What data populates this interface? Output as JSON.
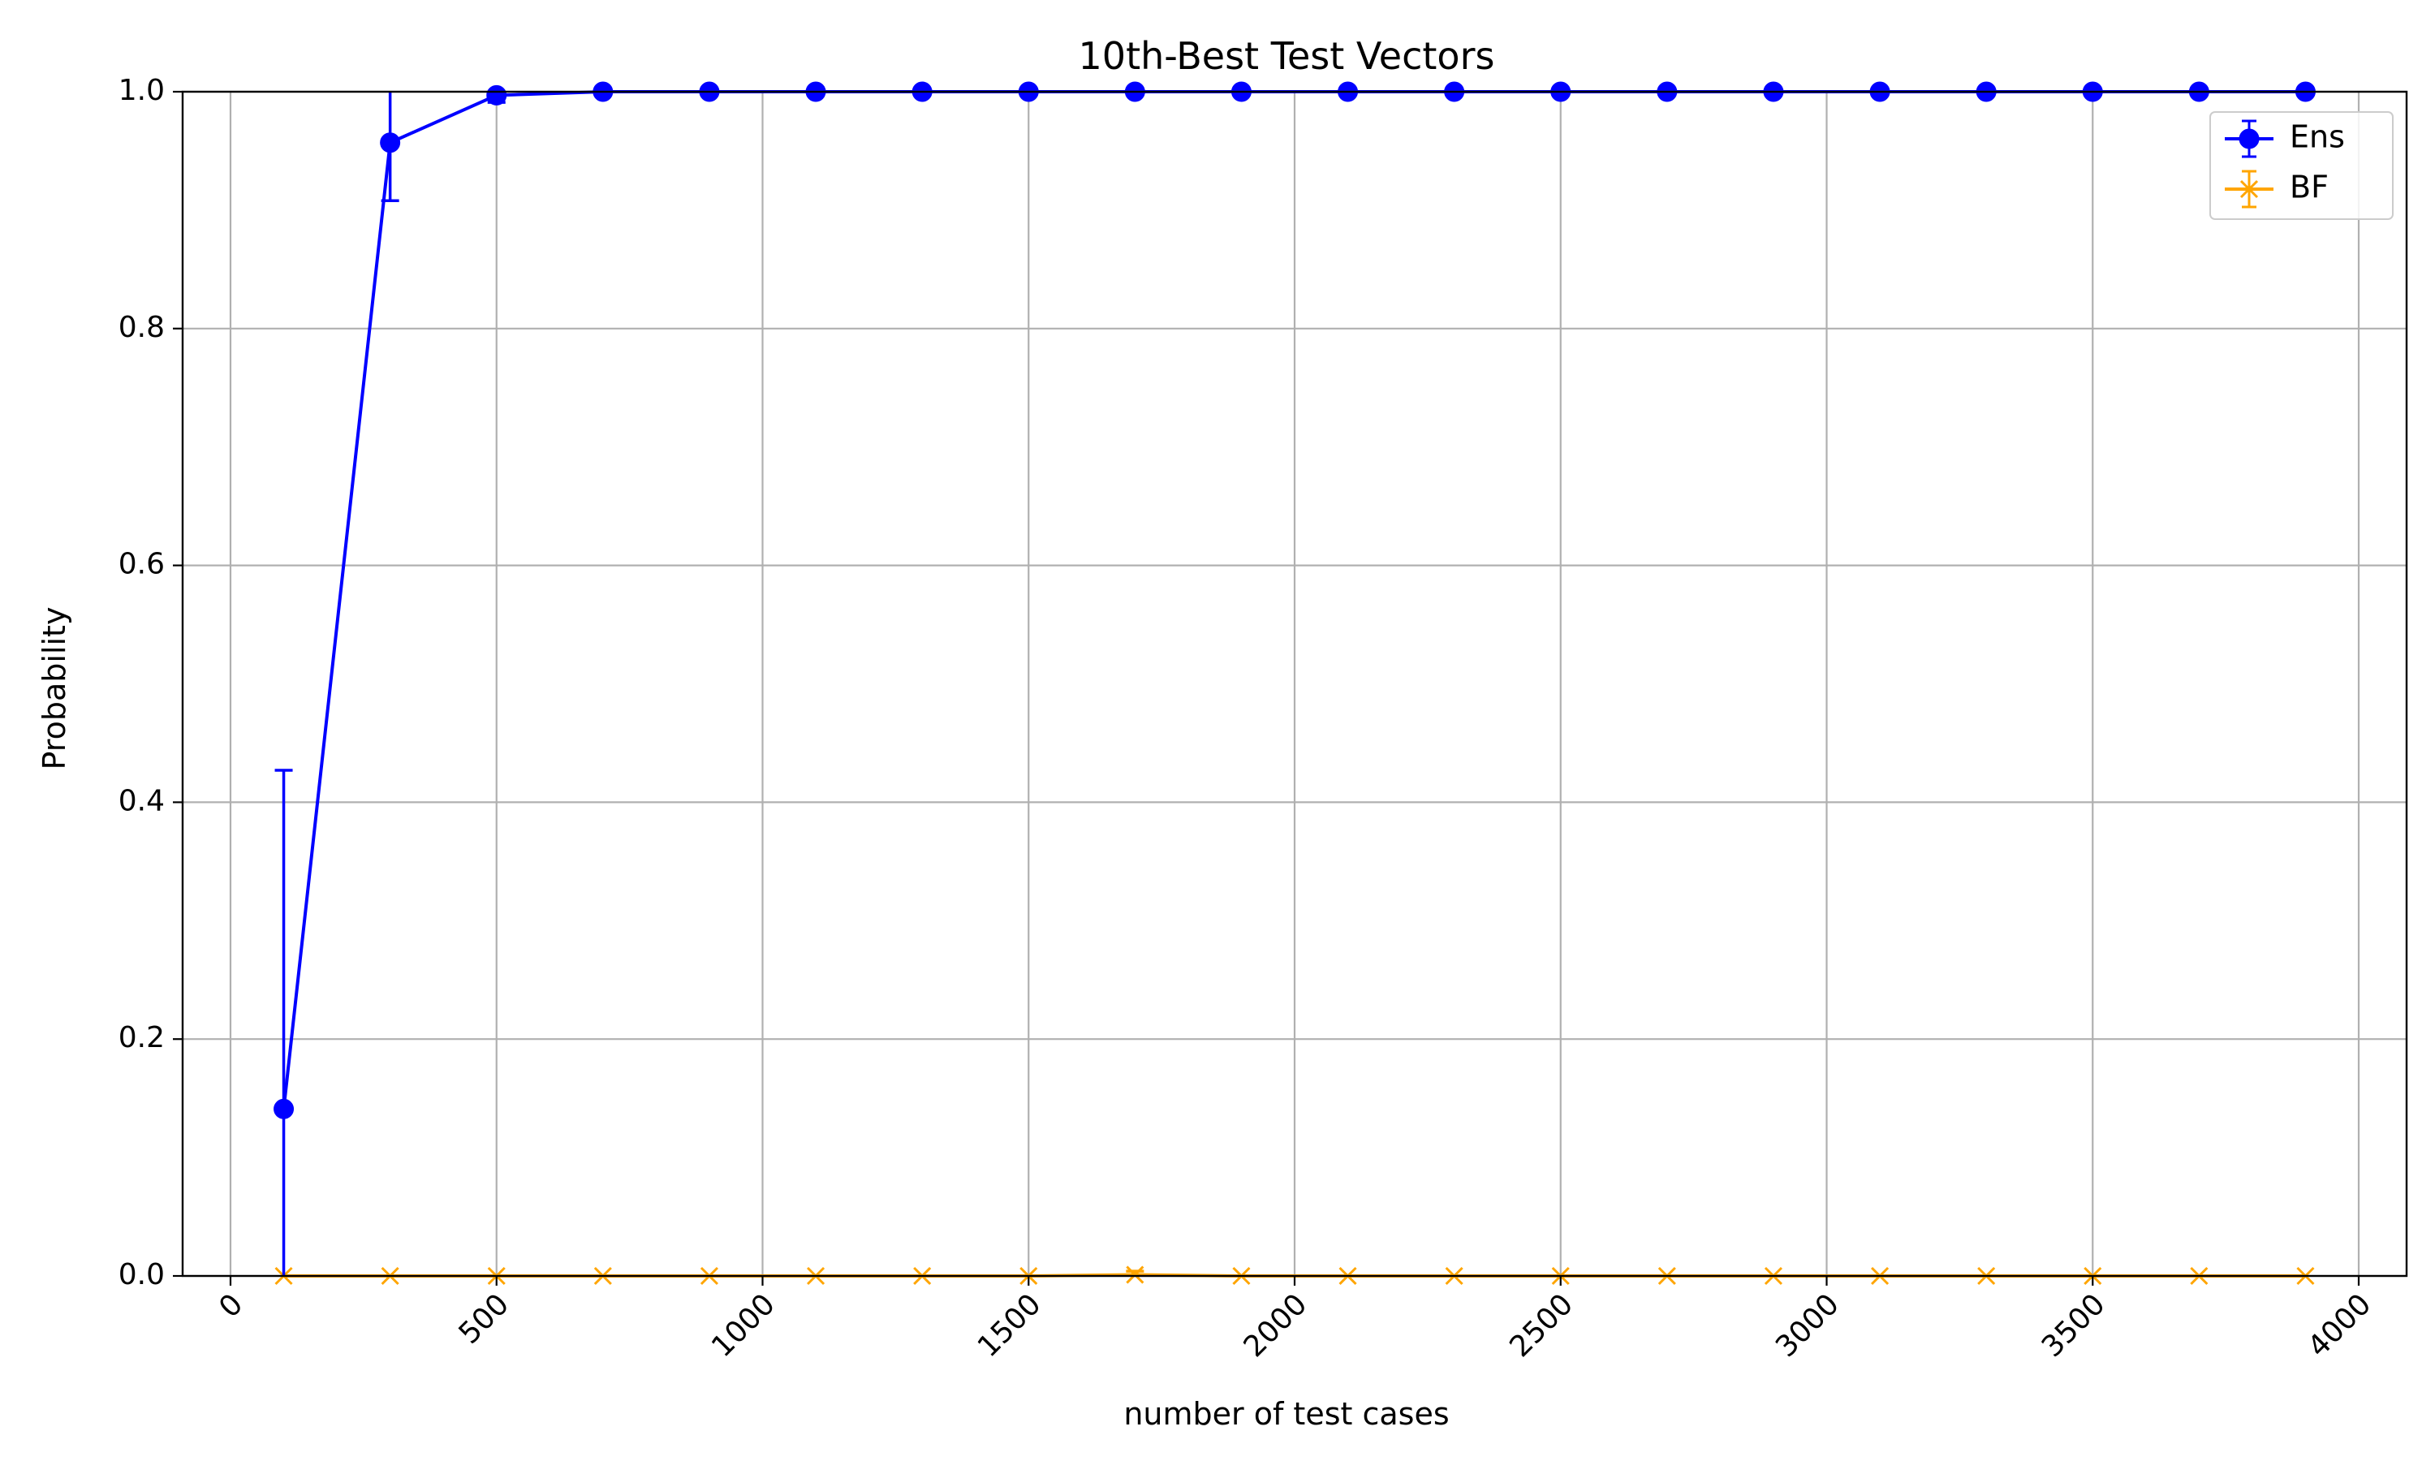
{
  "chart_data": {
    "type": "line",
    "title": "10th-Best Test Vectors",
    "xlabel": "number of test cases",
    "ylabel": "Probability",
    "xlim": [
      -90,
      4090
    ],
    "ylim": [
      0,
      1
    ],
    "xticks": [
      0,
      500,
      1000,
      1500,
      2000,
      2500,
      3000,
      3500,
      4000
    ],
    "yticks": [
      0.0,
      0.2,
      0.4,
      0.6,
      0.8,
      1.0
    ],
    "xtick_labels": [
      "0",
      "500",
      "1000",
      "1500",
      "2000",
      "2500",
      "3000",
      "3500",
      "4000"
    ],
    "ytick_labels": [
      "0.0",
      "0.2",
      "0.4",
      "0.6",
      "0.8",
      "1.0"
    ],
    "xtick_rotation_deg": 45,
    "grid": true,
    "legend_position": "top-right",
    "x": [
      100,
      300,
      500,
      700,
      900,
      1100,
      1300,
      1500,
      1700,
      1900,
      2100,
      2300,
      2500,
      2700,
      2900,
      3100,
      3300,
      3500,
      3700,
      3900
    ],
    "series": [
      {
        "name": "Ens",
        "color": "#0000ff",
        "marker": "circle",
        "values": [
          0.141,
          0.957,
          0.997,
          1.0,
          1.0,
          1.0,
          1.0,
          1.0,
          1.0,
          1.0,
          1.0,
          1.0,
          1.0,
          1.0,
          1.0,
          1.0,
          1.0,
          1.0,
          1.0,
          1.0
        ],
        "error": [
          0.286,
          0.049,
          0.006,
          0,
          0,
          0,
          0,
          0,
          0,
          0,
          0,
          0,
          0,
          0,
          0,
          0,
          0,
          0,
          0,
          0
        ]
      },
      {
        "name": "BF",
        "color": "#ffa500",
        "marker": "x",
        "values": [
          0,
          0,
          0,
          0,
          0,
          0,
          0,
          0,
          0.001,
          0,
          0,
          0,
          0,
          0,
          0,
          0,
          0,
          0,
          0,
          0
        ],
        "error": [
          0,
          0,
          0,
          0,
          0,
          0,
          0,
          0,
          0.003,
          0,
          0,
          0,
          0,
          0,
          0,
          0,
          0,
          0,
          0,
          0
        ]
      }
    ]
  }
}
